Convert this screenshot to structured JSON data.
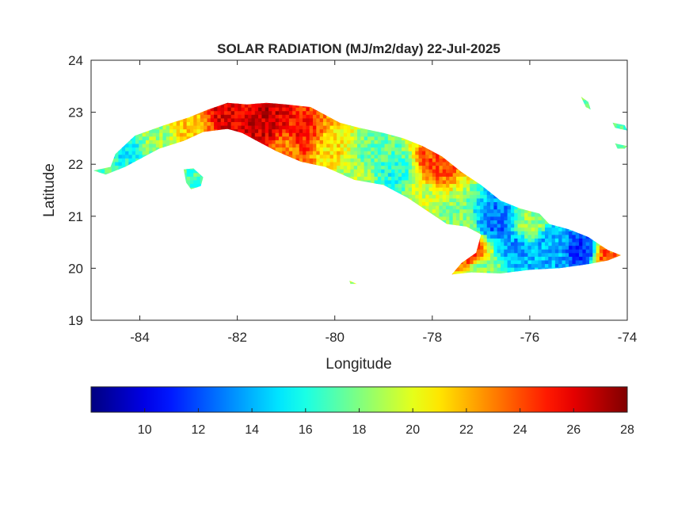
{
  "figure": {
    "title": "SOLAR RADIATION (MJ/m2/day) 22-Jul-2025",
    "xlabel": "Longitude",
    "ylabel": "Latitude"
  },
  "chart_data": {
    "type": "heatmap",
    "title": "SOLAR RADIATION (MJ/m2/day) 22-Jul-2025",
    "xlabel": "Longitude",
    "ylabel": "Latitude",
    "xlim": [
      -85,
      -74
    ],
    "ylim": [
      19,
      24
    ],
    "xticks": [
      -84,
      -82,
      -80,
      -78,
      -76,
      -74
    ],
    "yticks": [
      19,
      20,
      21,
      22,
      23,
      24
    ],
    "colorbar": {
      "colormap": "jet",
      "range": [
        8,
        28
      ],
      "ticks": [
        10,
        12,
        14,
        16,
        18,
        20,
        22,
        24,
        26,
        28
      ],
      "placement": "bottom"
    },
    "outline": [
      [
        -84.95,
        21.88
      ],
      [
        -84.6,
        21.95
      ],
      [
        -84.5,
        22.2
      ],
      [
        -84.1,
        22.55
      ],
      [
        -83.5,
        22.75
      ],
      [
        -83.0,
        22.9
      ],
      [
        -82.6,
        23.05
      ],
      [
        -82.2,
        23.18
      ],
      [
        -81.8,
        23.15
      ],
      [
        -81.4,
        23.18
      ],
      [
        -81.0,
        23.15
      ],
      [
        -80.5,
        23.1
      ],
      [
        -80.2,
        22.95
      ],
      [
        -79.9,
        22.8
      ],
      [
        -79.5,
        22.7
      ],
      [
        -79.0,
        22.6
      ],
      [
        -78.6,
        22.5
      ],
      [
        -78.2,
        22.35
      ],
      [
        -77.8,
        22.15
      ],
      [
        -77.4,
        21.85
      ],
      [
        -77.0,
        21.6
      ],
      [
        -76.6,
        21.3
      ],
      [
        -76.2,
        21.15
      ],
      [
        -75.8,
        21.05
      ],
      [
        -75.6,
        20.85
      ],
      [
        -75.2,
        20.75
      ],
      [
        -74.8,
        20.6
      ],
      [
        -74.4,
        20.35
      ],
      [
        -74.13,
        20.25
      ],
      [
        -74.4,
        20.15
      ],
      [
        -74.8,
        20.08
      ],
      [
        -75.4,
        20.0
      ],
      [
        -76.0,
        19.97
      ],
      [
        -76.6,
        19.9
      ],
      [
        -77.2,
        19.92
      ],
      [
        -77.6,
        19.88
      ],
      [
        -77.4,
        20.1
      ],
      [
        -77.1,
        20.3
      ],
      [
        -77.0,
        20.65
      ],
      [
        -77.3,
        20.8
      ],
      [
        -77.7,
        20.85
      ],
      [
        -78.1,
        21.1
      ],
      [
        -78.5,
        21.35
      ],
      [
        -79.0,
        21.6
      ],
      [
        -79.6,
        21.7
      ],
      [
        -80.2,
        21.95
      ],
      [
        -80.7,
        22.05
      ],
      [
        -81.2,
        22.25
      ],
      [
        -81.6,
        22.45
      ],
      [
        -81.9,
        22.6
      ],
      [
        -82.2,
        22.68
      ],
      [
        -82.7,
        22.62
      ],
      [
        -83.1,
        22.45
      ],
      [
        -83.6,
        22.3
      ],
      [
        -84.0,
        22.1
      ],
      [
        -84.3,
        21.95
      ],
      [
        -84.7,
        21.8
      ]
    ],
    "islands": [
      [
        [
          -83.1,
          21.9
        ],
        [
          -82.9,
          21.92
        ],
        [
          -82.7,
          21.75
        ],
        [
          -82.75,
          21.58
        ],
        [
          -82.95,
          21.52
        ],
        [
          -83.05,
          21.65
        ]
      ],
      [
        [
          -74.95,
          23.3
        ],
        [
          -74.85,
          23.1
        ],
        [
          -74.75,
          23.05
        ],
        [
          -74.8,
          23.2
        ]
      ],
      [
        [
          -74.3,
          22.8
        ],
        [
          -74.05,
          22.75
        ],
        [
          -74.0,
          22.65
        ],
        [
          -74.25,
          22.7
        ]
      ],
      [
        [
          -74.25,
          22.4
        ],
        [
          -74.0,
          22.35
        ],
        [
          -74.05,
          22.3
        ],
        [
          -74.2,
          22.3
        ]
      ],
      [
        [
          -79.7,
          19.76
        ],
        [
          -79.6,
          19.72
        ],
        [
          -79.55,
          19.7
        ],
        [
          -79.68,
          19.7
        ]
      ]
    ],
    "field_anchors": [
      [
        -84.3,
        22.3,
        15.5
      ],
      [
        -83.7,
        22.55,
        18.5
      ],
      [
        -83.0,
        22.8,
        21.5
      ],
      [
        -82.2,
        22.95,
        26
      ],
      [
        -81.4,
        22.8,
        26.5
      ],
      [
        -80.7,
        22.6,
        25
      ],
      [
        -80.0,
        22.3,
        21
      ],
      [
        -79.3,
        22.2,
        17.5
      ],
      [
        -78.8,
        21.8,
        16
      ],
      [
        -78.2,
        21.3,
        19.5
      ],
      [
        -77.6,
        20.9,
        18
      ],
      [
        -77.2,
        20.3,
        25
      ],
      [
        -76.7,
        20.9,
        12.5
      ],
      [
        -76.3,
        20.4,
        13.5
      ],
      [
        -75.6,
        20.45,
        14
      ],
      [
        -74.9,
        20.35,
        11.5
      ],
      [
        -82.9,
        21.7,
        17
      ],
      [
        -77.9,
        22.05,
        24
      ],
      [
        -81.0,
        22.3,
        23
      ],
      [
        -76.0,
        20.85,
        18.5
      ],
      [
        -74.4,
        20.25,
        24
      ],
      [
        -77.0,
        20.0,
        18
      ],
      [
        -84.8,
        21.95,
        17
      ],
      [
        -79.6,
        21.85,
        19
      ]
    ]
  }
}
